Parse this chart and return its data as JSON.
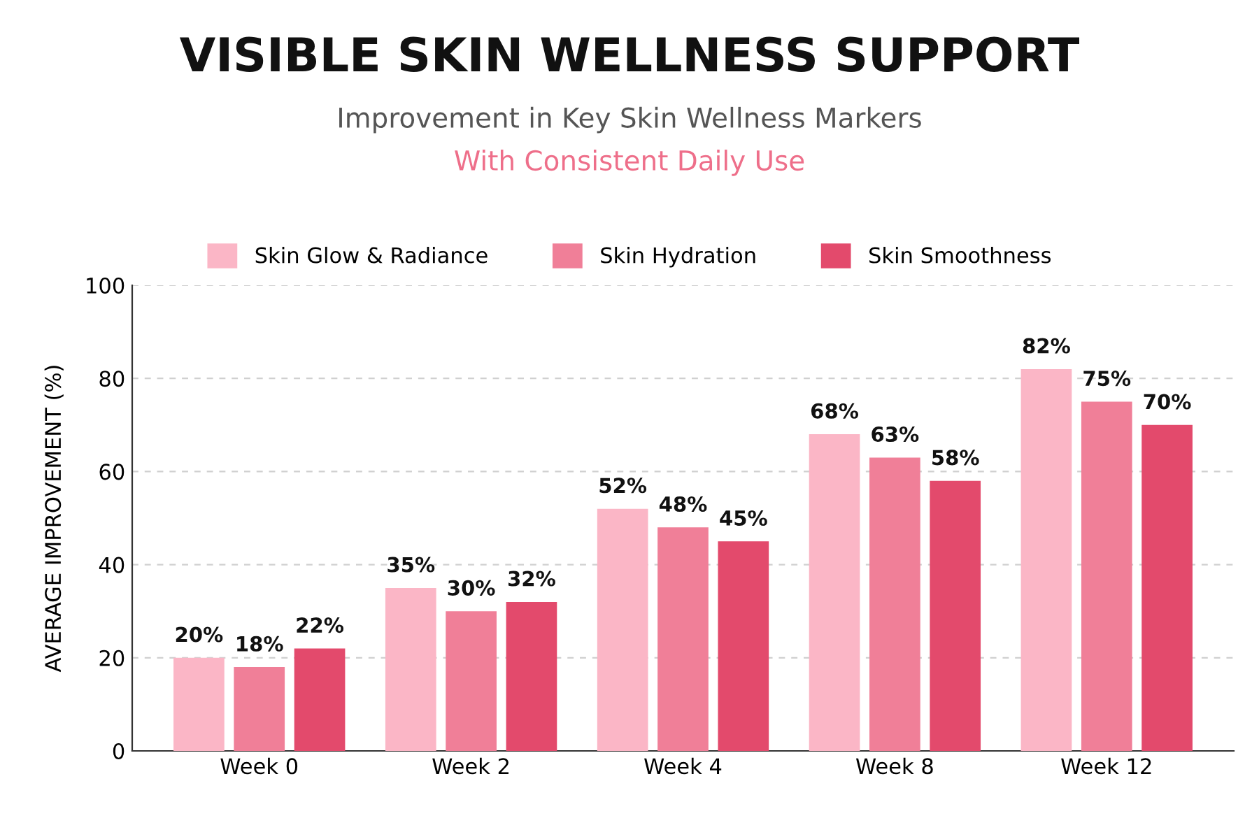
{
  "chart_data": {
    "type": "bar",
    "title": "VISIBLE SKIN WELLNESS SUPPORT",
    "subtitle": "Improvement in Key Skin Wellness Markers",
    "annotations": [
      "With Consistent Daily Use"
    ],
    "ylabel": "AVERAGE IMPROVEMENT (%)",
    "categories": [
      "Week 0",
      "Week 2",
      "Week 4",
      "Week 8",
      "Week 12"
    ],
    "series": [
      {
        "name": "Skin Glow & Radiance",
        "color": "#fbb6c6",
        "values": [
          20,
          35,
          52,
          68,
          82
        ],
        "value_labels": [
          "20%",
          "35%",
          "52%",
          "68%",
          "82%"
        ]
      },
      {
        "name": "Skin Hydration",
        "color": "#f07f98",
        "values": [
          18,
          30,
          48,
          63,
          75
        ],
        "value_labels": [
          "18%",
          "30%",
          "48%",
          "63%",
          "75%"
        ]
      },
      {
        "name": "Skin Smoothness",
        "color": "#e34a6c",
        "values": [
          22,
          32,
          45,
          58,
          70
        ],
        "value_labels": [
          "22%",
          "32%",
          "45%",
          "58%",
          "70%"
        ]
      }
    ],
    "ylim": [
      0,
      100
    ],
    "yticks": [
      0,
      20,
      40,
      60,
      80,
      100
    ],
    "grid": "y",
    "legend": "top"
  }
}
